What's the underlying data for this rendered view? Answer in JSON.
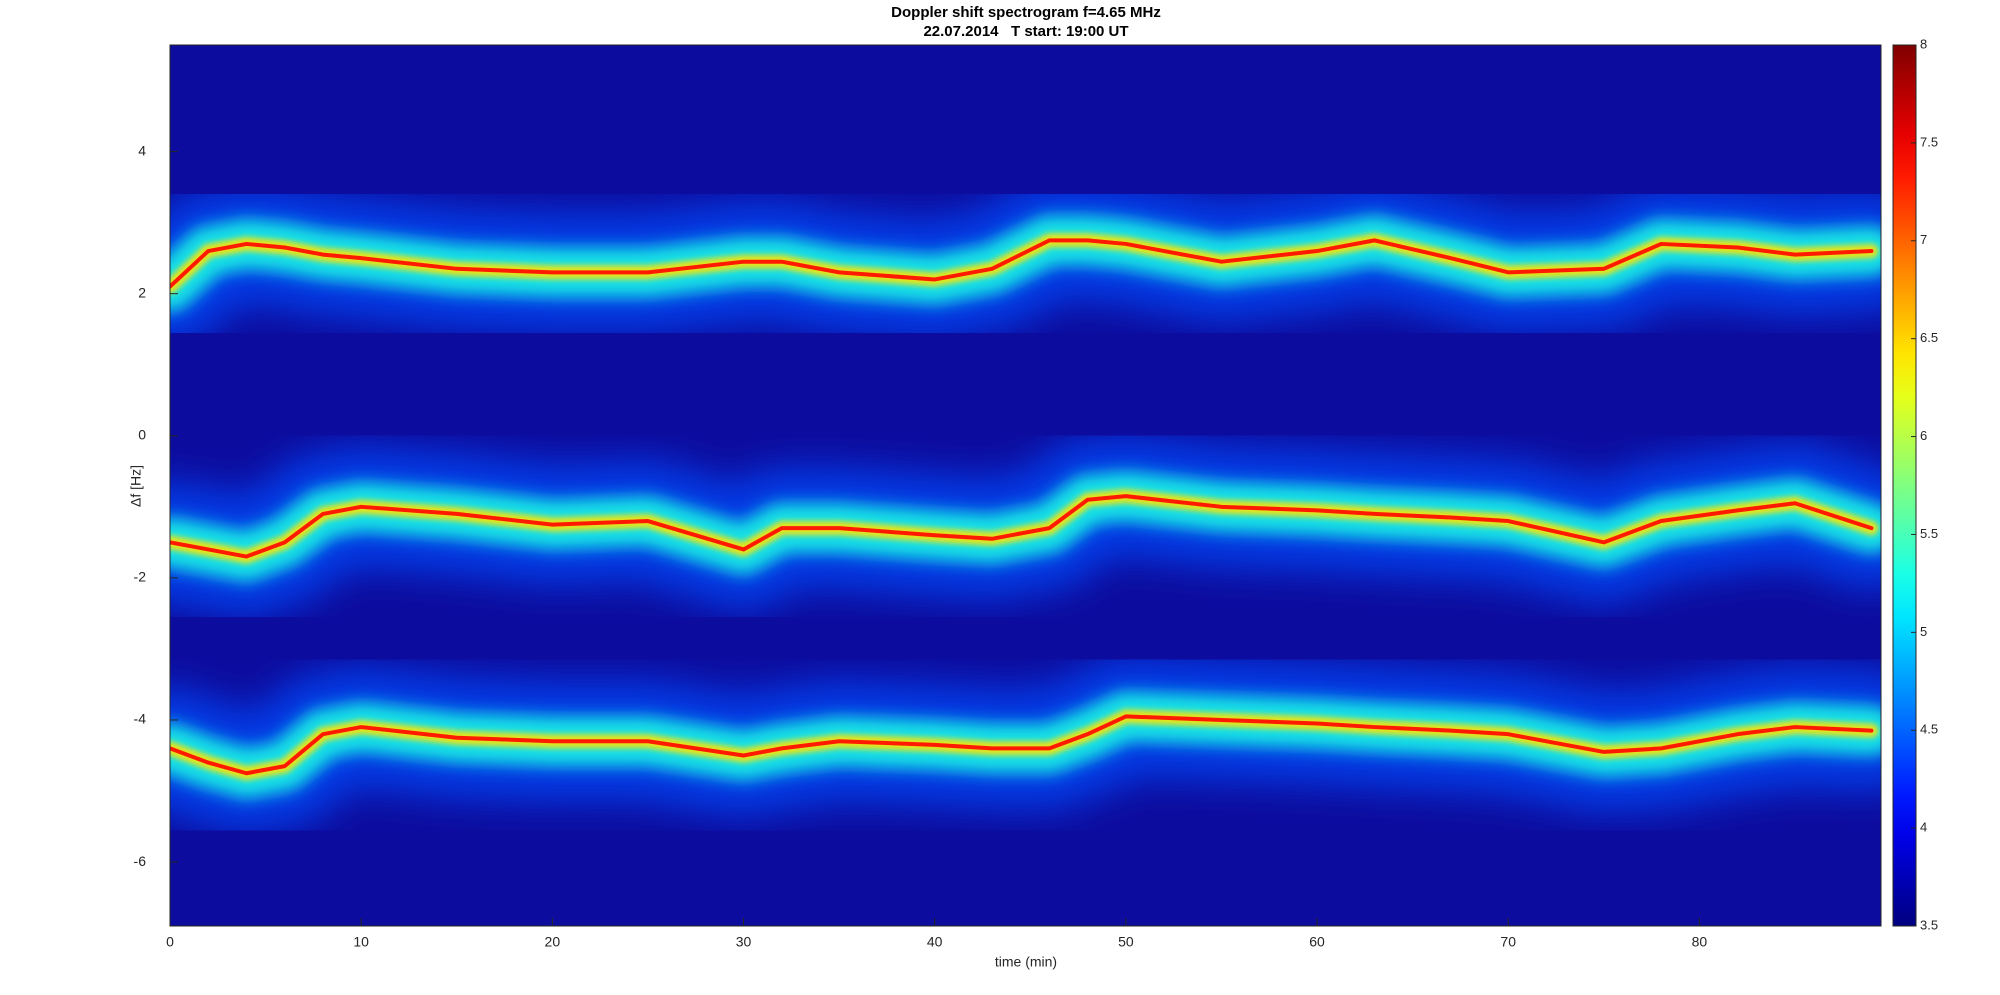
{
  "chart_data": {
    "type": "spectrogram",
    "title": "Doppler shift spectrogram f=4.65 MHz",
    "subtitle": "22.07.2014   T start: 19:00 UT",
    "x_label": "time (min)",
    "y_label": "Δf [Hz]",
    "xlim": [
      0,
      89.5
    ],
    "xticks": [
      0,
      10,
      20,
      30,
      40,
      50,
      60,
      70,
      80
    ],
    "ylim": [
      -6.9,
      5.5
    ],
    "yticks": [
      -6,
      -4,
      -2,
      0,
      2,
      4
    ],
    "background_color": "#0c0c9e",
    "x": [
      0,
      2,
      4,
      6,
      8,
      10,
      15,
      20,
      25,
      30,
      32,
      35,
      40,
      43,
      46,
      48,
      50,
      55,
      60,
      63,
      67,
      70,
      75,
      78,
      82,
      85,
      89
    ],
    "series": [
      {
        "color": "#ff1a00",
        "values": [
          2.1,
          2.6,
          2.7,
          2.65,
          2.55,
          2.5,
          2.35,
          2.3,
          2.3,
          2.45,
          2.45,
          2.3,
          2.2,
          2.35,
          2.75,
          2.75,
          2.7,
          2.45,
          2.6,
          2.75,
          2.5,
          2.3,
          2.35,
          2.7,
          2.65,
          2.55,
          2.6
        ]
      },
      {
        "color": "#ff1a00",
        "values": [
          -1.5,
          -1.6,
          -1.7,
          -1.5,
          -1.1,
          -1.0,
          -1.1,
          -1.25,
          -1.2,
          -1.6,
          -1.3,
          -1.3,
          -1.4,
          -1.45,
          -1.3,
          -0.9,
          -0.85,
          -1.0,
          -1.05,
          -1.1,
          -1.15,
          -1.2,
          -1.5,
          -1.2,
          -1.05,
          -0.95,
          -1.3
        ]
      },
      {
        "color": "#ff1a00",
        "values": [
          -4.4,
          -4.6,
          -4.75,
          -4.65,
          -4.2,
          -4.1,
          -4.25,
          -4.3,
          -4.3,
          -4.5,
          -4.4,
          -4.3,
          -4.35,
          -4.4,
          -4.4,
          -4.2,
          -3.95,
          -4.0,
          -4.05,
          -4.1,
          -4.15,
          -4.2,
          -4.45,
          -4.4,
          -4.2,
          -4.1,
          -4.15
        ]
      }
    ],
    "colorbar": {
      "lim": [
        3.5,
        8
      ],
      "ticks": [
        3.5,
        4,
        4.5,
        5,
        5.5,
        6,
        6.5,
        7,
        7.5,
        8
      ],
      "colormap": "jet"
    }
  }
}
